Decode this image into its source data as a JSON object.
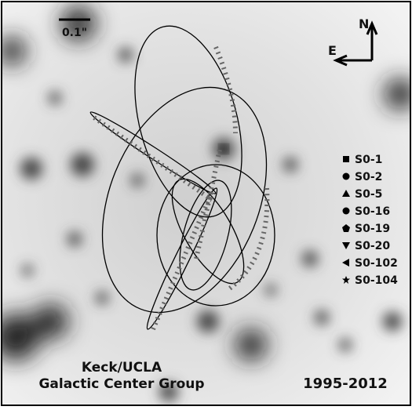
{
  "scale_bar": {
    "label": "0.1\""
  },
  "compass": {
    "north": "N",
    "east": "E"
  },
  "legend": {
    "entries": [
      "S0-1",
      "S0-2",
      "S0-5",
      "S0-16",
      "S0-19",
      "S0-20",
      "S0-102",
      "S0-104"
    ]
  },
  "credit": {
    "line1": "Keck/UCLA",
    "line2": "Galactic Center Group"
  },
  "years": "1995-2012"
}
